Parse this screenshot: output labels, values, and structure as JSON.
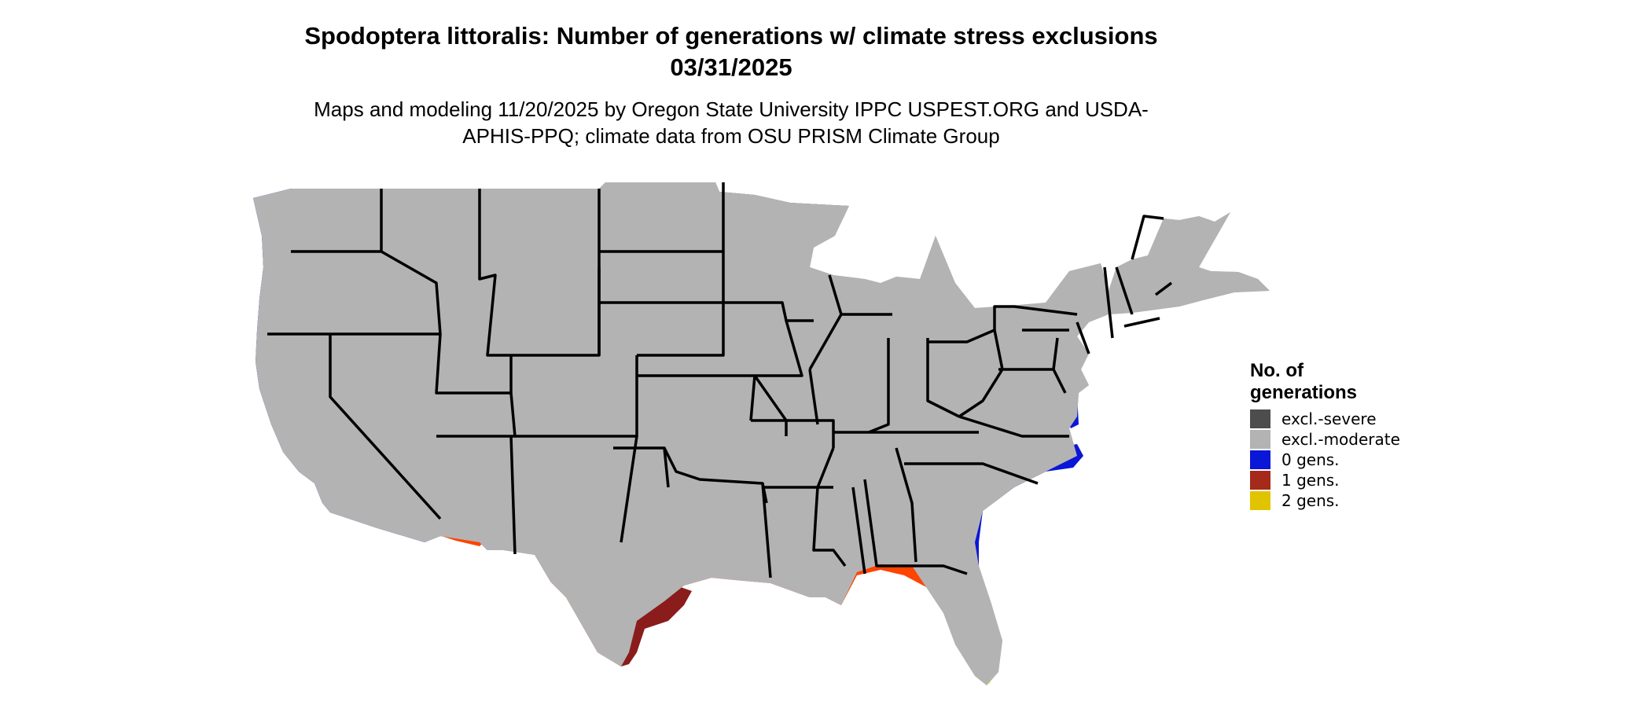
{
  "title": "Spodoptera littoralis: Number of generations w/ climate stress exclusions 03/31/2025",
  "subtitle": "Maps and modeling 11/20/2025 by Oregon State University IPPC USPEST.ORG and USDA-APHIS-PPQ; climate data from OSU PRISM Climate Group",
  "legend": {
    "title": "No. of generations",
    "items": [
      {
        "label": "excl.-severe",
        "color": "#4d4d4d"
      },
      {
        "label": "excl.-moderate",
        "color": "#b3b3b3"
      },
      {
        "label": "0 gens.",
        "color": "#0a17d6"
      },
      {
        "label": "1 gens.",
        "color": "#a52a1a"
      },
      {
        "label": "2 gens.",
        "color": "#e0c400"
      }
    ]
  },
  "colors": {
    "excl_severe": "#4d4d4d",
    "excl_moderate": "#b3b3b3",
    "gen0": "#0a17d6",
    "gen1_light": "#ff4400",
    "gen1_dark": "#8b1c1c",
    "gen2": "#ffee00"
  }
}
